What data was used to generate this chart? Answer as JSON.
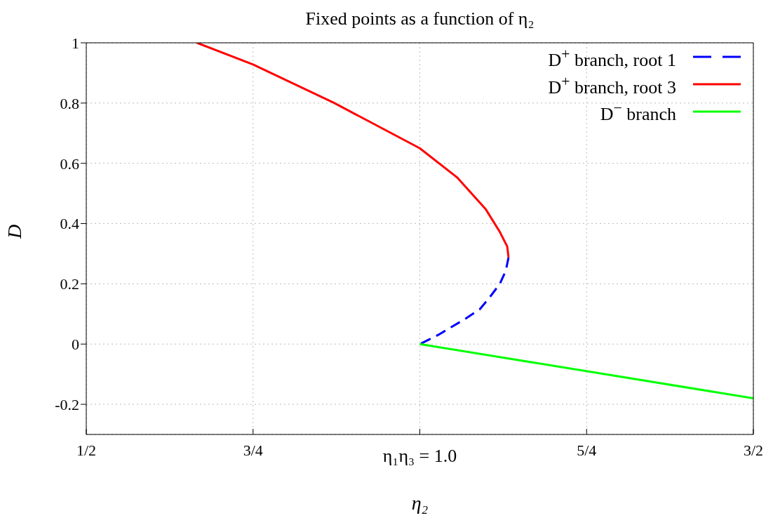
{
  "chart_data": {
    "type": "line",
    "title": "Fixed points as a function of η₂",
    "xlabel": "η₂",
    "ylabel": "D",
    "annotations": [
      "η₁η₃ = 1.0"
    ],
    "xlim": [
      0.5,
      1.5
    ],
    "xticks": [
      {
        "value": 0.5,
        "label": "1/2"
      },
      {
        "value": 0.75,
        "label": "3/4"
      },
      {
        "value": 1.0,
        "label": null
      },
      {
        "value": 1.25,
        "label": "5/4"
      },
      {
        "value": 1.5,
        "label": "3/2"
      }
    ],
    "ylim": [
      -0.3,
      1
    ],
    "yticks": [
      -0.2,
      0,
      0.2,
      0.4,
      0.6,
      0.8,
      1
    ],
    "grid": true,
    "legend": "top right",
    "marker": "none",
    "series": [
      {
        "name": "D$^{+}$ branch, root 1",
        "color": "#0000ff",
        "line_style": "dashed",
        "x": [
          1.133,
          1.129,
          1.12,
          1.105,
          1.09,
          1.069,
          1.028,
          1.0
        ],
        "values": [
          0.288,
          0.244,
          0.2,
          0.156,
          0.116,
          0.085,
          0.031,
          0
        ]
      },
      {
        "name": "D$^{+}$ branch, root 3",
        "color": "#ff0000",
        "line_style": "solid",
        "x": [
          0.666,
          0.75,
          0.871,
          1.0,
          1.056,
          1.099,
          1.12,
          1.131,
          1.133
        ],
        "values": [
          1.0,
          0.928,
          0.801,
          0.65,
          0.553,
          0.447,
          0.372,
          0.324,
          0.288
        ]
      },
      {
        "name": "D$^{−}$ branch",
        "color": "#00ff00",
        "line_style": "solid",
        "x": [
          1.0,
          1.5
        ],
        "values": [
          0,
          -0.18
        ]
      }
    ]
  }
}
